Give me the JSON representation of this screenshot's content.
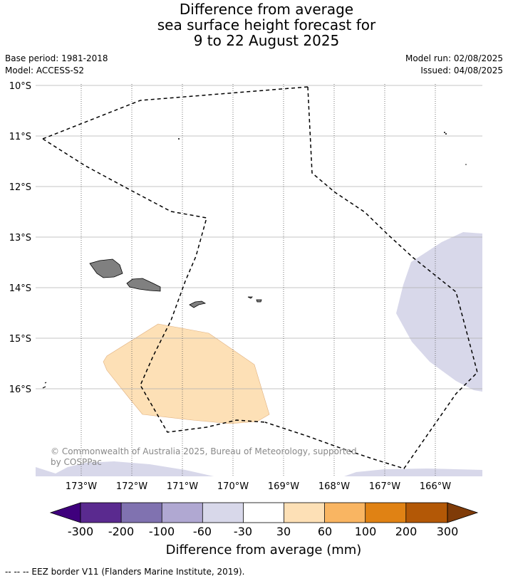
{
  "title": {
    "line1": "Difference from average",
    "line2": "sea surface height forecast for",
    "line3": "9 to 22 August 2025"
  },
  "meta": {
    "base_period": "Base period: 1981-2018",
    "model": "Model: ACCESS-S2",
    "model_run": "Model run: 02/08/2025",
    "issued": "Issued: 04/08/2025"
  },
  "map": {
    "lat_labels": [
      "10°S",
      "11°S",
      "12°S",
      "13°S",
      "14°S",
      "15°S",
      "16°S"
    ],
    "lon_labels": [
      "173°W",
      "172°W",
      "171°W",
      "170°W",
      "169°W",
      "168°W",
      "167°W",
      "166°W"
    ],
    "copyright_line1": "© Commonwealth of Australia 2025, Bureau of Meteorology, supported",
    "copyright_line2": "by COSPPac",
    "land_color": "#808080",
    "low_anomaly_color": "#d8d8ea",
    "high_anomaly_color": "#fde0b6"
  },
  "colorbar": {
    "title": "Difference from average (mm)",
    "tick_labels": [
      "-300",
      "-200",
      "-100",
      "-60",
      "-30",
      "30",
      "60",
      "100",
      "200",
      "300"
    ],
    "colors": [
      "#3f007d",
      "#5a2a8f",
      "#8072b0",
      "#b0a8d2",
      "#d8d8ea",
      "#ffffff",
      "#fde0b6",
      "#f9b562",
      "#e08214",
      "#b35806",
      "#7f3b08"
    ]
  },
  "footer": {
    "legend_text": "--  --  -- EEZ border V11 (Flanders Marine Institute, 2019)."
  }
}
